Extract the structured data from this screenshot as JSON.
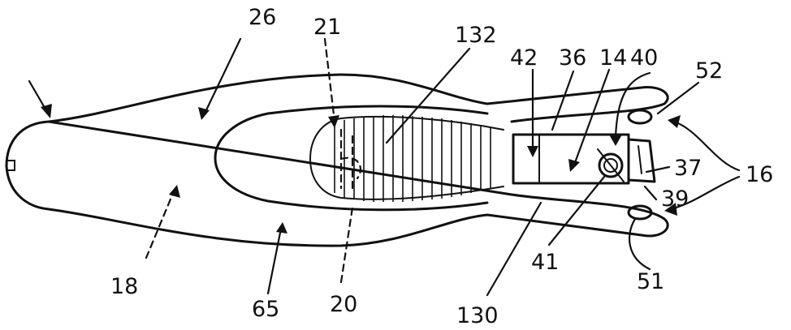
{
  "figure": {
    "reference_numerals": {
      "n26": "26",
      "n21": "21",
      "n132": "132",
      "n42": "42",
      "n36": "36",
      "n14": "14",
      "n40": "40",
      "n52": "52",
      "n37": "37",
      "n16": "16",
      "n39": "39",
      "n18": "18",
      "n65": "65",
      "n20": "20",
      "n130": "130",
      "n41": "41",
      "n51": "51"
    }
  }
}
